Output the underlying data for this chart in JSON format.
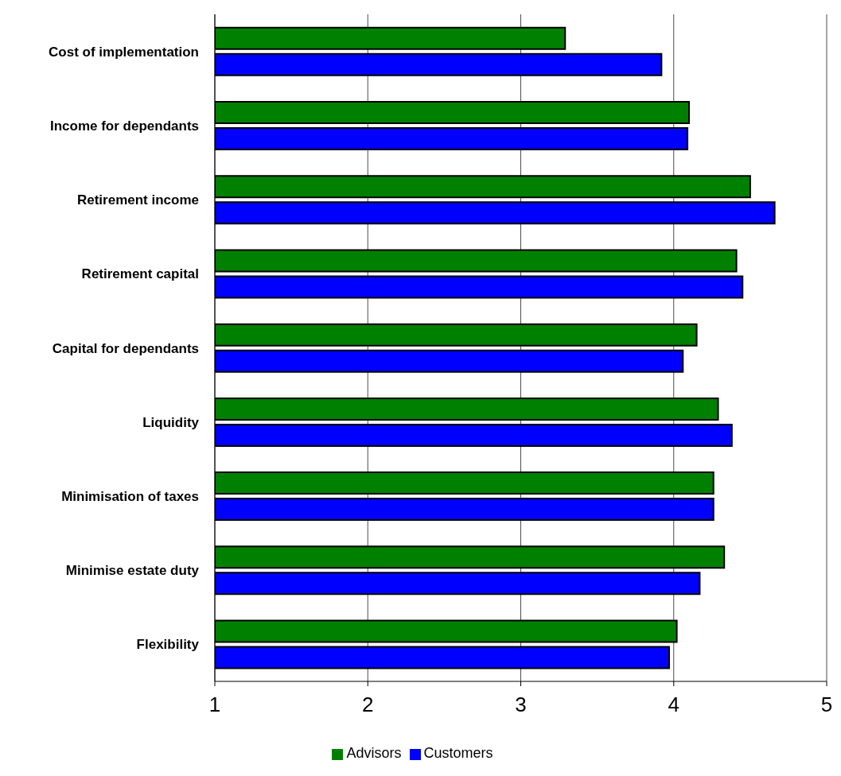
{
  "chart_data": {
    "type": "bar",
    "orientation": "horizontal",
    "categories": [
      "Cost of implementation",
      "Income for dependants",
      "Retirement income",
      "Retirement capital",
      "Capital for dependants",
      "Liquidity",
      "Minimisation of taxes",
      "Minimise estate duty",
      "Flexibility"
    ],
    "series": [
      {
        "name": "Advisors",
        "color": "#008000",
        "values": [
          3.29,
          4.1,
          4.5,
          4.41,
          4.15,
          4.29,
          4.26,
          4.33,
          4.02
        ]
      },
      {
        "name": "Customers",
        "color": "#0000ff",
        "values": [
          3.92,
          4.09,
          4.66,
          4.45,
          4.06,
          4.38,
          4.26,
          4.17,
          3.97
        ]
      }
    ],
    "xlim": [
      1,
      5
    ],
    "xticks": [
      1,
      2,
      3,
      4,
      5
    ],
    "grid": "x",
    "legend": "bottom"
  }
}
